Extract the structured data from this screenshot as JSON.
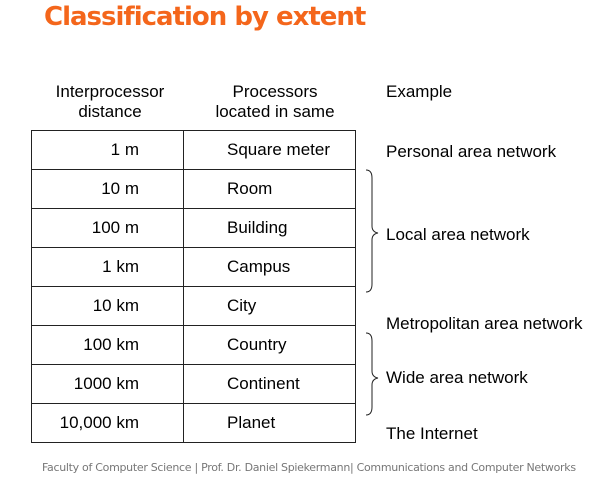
{
  "title": "Classification by extent",
  "headers": {
    "distance": [
      "Interprocessor",
      "distance"
    ],
    "located": [
      "Processors",
      "located in same"
    ],
    "example": "Example"
  },
  "rows": [
    {
      "distance": "1 m",
      "located": "Square meter"
    },
    {
      "distance": "10 m",
      "located": "Room"
    },
    {
      "distance": "100 m",
      "located": "Building"
    },
    {
      "distance": "1 km",
      "located": "Campus"
    },
    {
      "distance": "10 km",
      "located": "City"
    },
    {
      "distance": "100 km",
      "located": "Country"
    },
    {
      "distance": "1000 km",
      "located": "Continent"
    },
    {
      "distance": "10,000 km",
      "located": "Planet"
    }
  ],
  "examples": {
    "pan": "Personal area network",
    "lan": "Local area network",
    "man": "Metropolitan area network",
    "wan": "Wide area network",
    "internet": "The Internet"
  },
  "footer": "Faculty of Computer Science | Prof. Dr. Daniel Spiekermann| Communications and Computer Networks",
  "colors": {
    "title": "#f4661b",
    "footer": "#777777"
  }
}
